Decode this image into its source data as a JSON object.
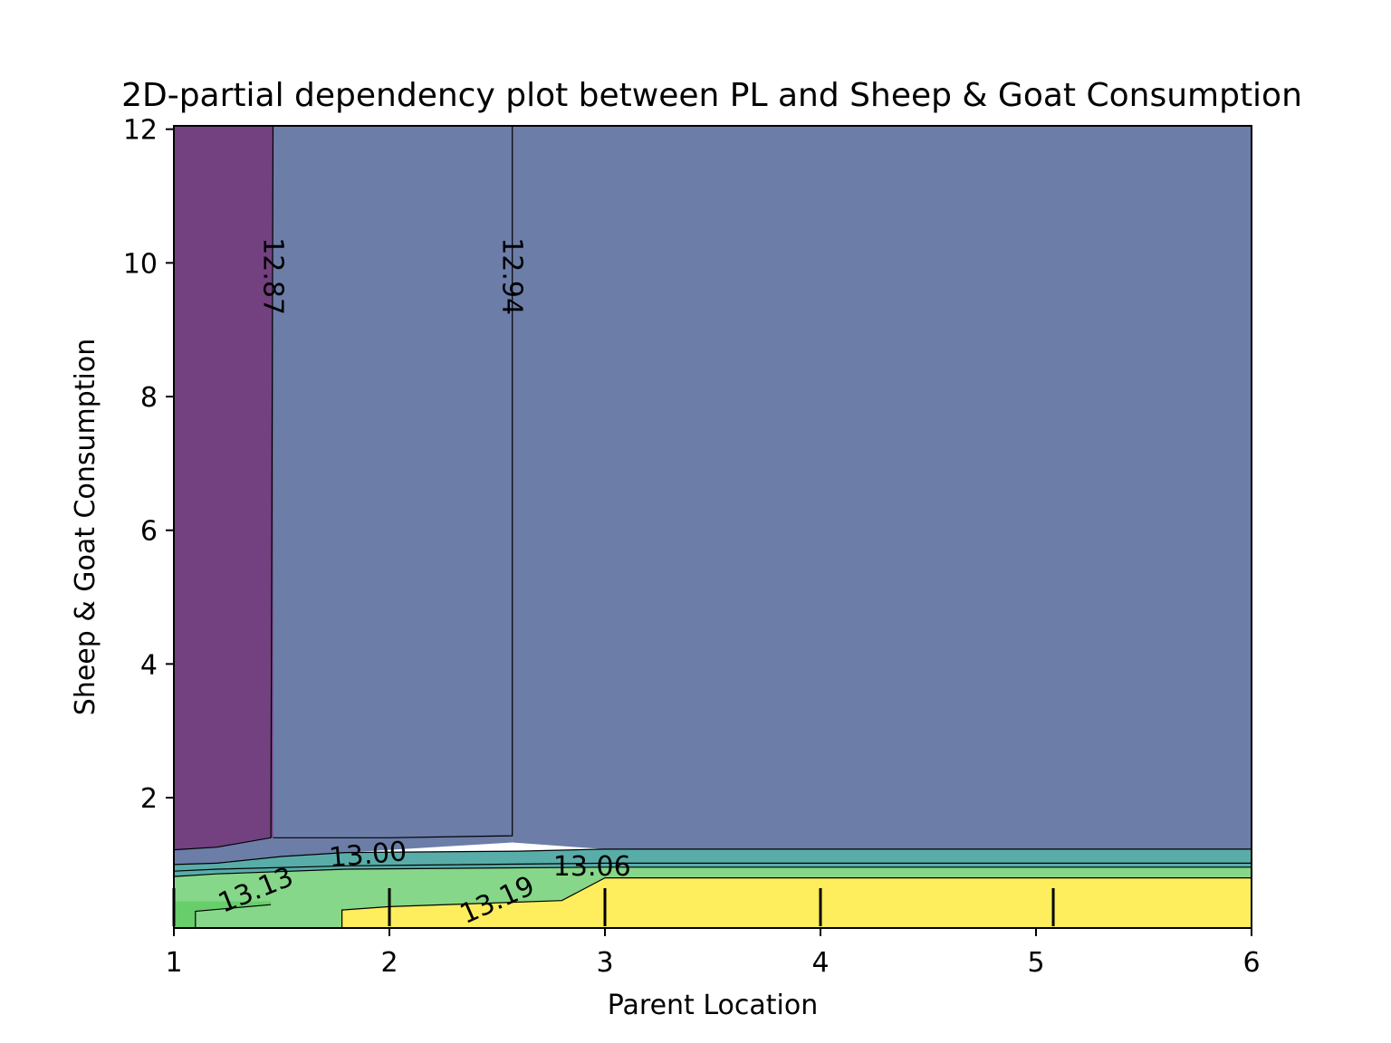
{
  "chart_data": {
    "type": "contour",
    "title": "2D-partial dependency plot between PL and Sheep & Goat Consumption",
    "xlabel": "Parent Location",
    "ylabel": "Sheep & Goat Consumption",
    "xlim": [
      1,
      6
    ],
    "ylim": [
      0.05,
      12.05
    ],
    "xticks": [
      1,
      2,
      3,
      4,
      5,
      6
    ],
    "yticks": [
      2,
      4,
      6,
      8,
      10,
      12
    ],
    "colormap": "viridis",
    "alpha": 0.75,
    "levels": [
      12.87,
      12.94,
      13.0,
      13.06,
      13.13,
      13.19
    ],
    "level_labels": [
      "12.87",
      "12.94",
      "13.00",
      "13.06",
      "13.13",
      "13.19"
    ],
    "region_colors": [
      "#440154",
      "#3b528b",
      "#21918c",
      "#21918c",
      "#5ec962",
      "#5ec962",
      "#fde725"
    ],
    "rug_x": [
      1.0,
      2.0,
      3.0,
      4.0,
      5.08
    ],
    "grid": false
  }
}
